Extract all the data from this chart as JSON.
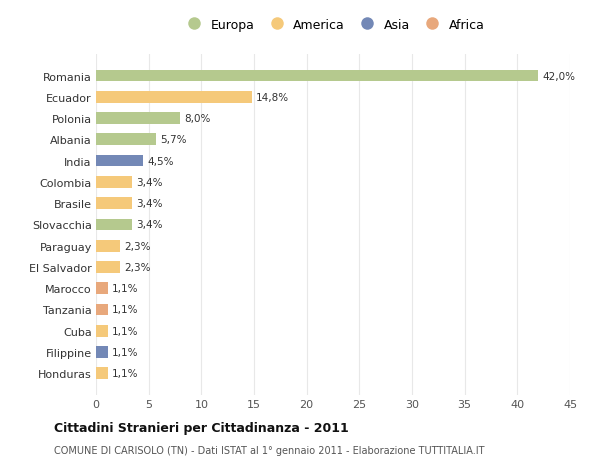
{
  "countries": [
    "Romania",
    "Ecuador",
    "Polonia",
    "Albania",
    "India",
    "Colombia",
    "Brasile",
    "Slovacchia",
    "Paraguay",
    "El Salvador",
    "Marocco",
    "Tanzania",
    "Cuba",
    "Filippine",
    "Honduras"
  ],
  "values": [
    42.0,
    14.8,
    8.0,
    5.7,
    4.5,
    3.4,
    3.4,
    3.4,
    2.3,
    2.3,
    1.1,
    1.1,
    1.1,
    1.1,
    1.1
  ],
  "labels": [
    "42,0%",
    "14,8%",
    "8,0%",
    "5,7%",
    "4,5%",
    "3,4%",
    "3,4%",
    "3,4%",
    "2,3%",
    "2,3%",
    "1,1%",
    "1,1%",
    "1,1%",
    "1,1%",
    "1,1%"
  ],
  "continents": [
    "Europa",
    "America",
    "Europa",
    "Europa",
    "Asia",
    "America",
    "America",
    "Europa",
    "America",
    "America",
    "Africa",
    "Africa",
    "America",
    "Asia",
    "America"
  ],
  "continent_colors": {
    "Europa": "#b5c98e",
    "America": "#f5c97a",
    "Asia": "#7388b6",
    "Africa": "#e8a87c"
  },
  "legend_order": [
    "Europa",
    "America",
    "Asia",
    "Africa"
  ],
  "title_bold": "Cittadini Stranieri per Cittadinanza - 2011",
  "subtitle": "COMUNE DI CARISOLO (TN) - Dati ISTAT al 1° gennaio 2011 - Elaborazione TUTTITALIA.IT",
  "xlim": [
    0,
    45
  ],
  "xticks": [
    0,
    5,
    10,
    15,
    20,
    25,
    30,
    35,
    40,
    45
  ],
  "background_color": "#ffffff",
  "plot_bg_color": "#ffffff",
  "grid_color": "#e8e8e8",
  "bar_height": 0.55
}
